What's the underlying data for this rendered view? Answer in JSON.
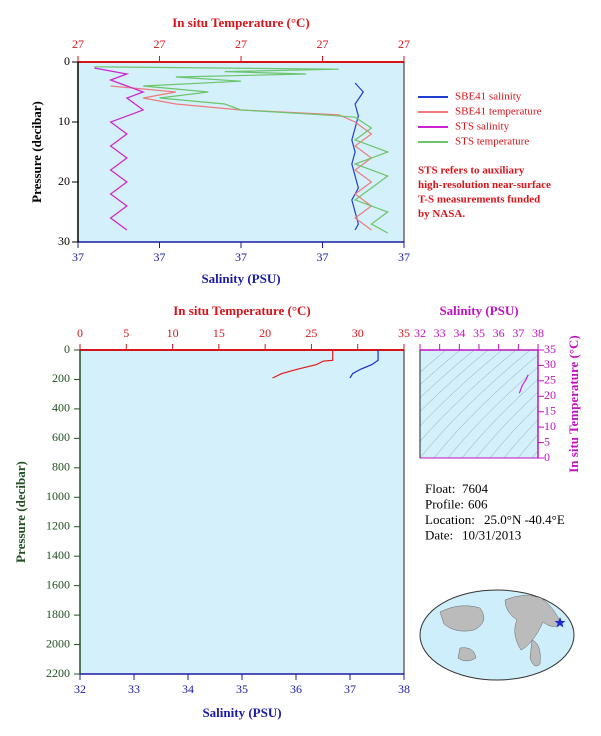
{
  "chart_data": [
    {
      "type": "line",
      "xlabel": "Salinity (PSU)",
      "x2label": "In situ Temperature (°C)",
      "ylabel": "Pressure (decibar)",
      "xlim": [
        36.9,
        37.1
      ],
      "xticks": [
        {
          "value": 36.9,
          "label": "37"
        },
        {
          "value": 36.95,
          "label": "37"
        },
        {
          "value": 37.0,
          "label": "37"
        },
        {
          "value": 37.05,
          "label": "37"
        },
        {
          "value": 37.1,
          "label": "37"
        }
      ],
      "x2lim": [
        26.9,
        27.1
      ],
      "x2ticks": [
        {
          "value": 26.9,
          "label": "27"
        },
        {
          "value": 26.95,
          "label": "27"
        },
        {
          "value": 27.0,
          "label": "27"
        },
        {
          "value": 27.05,
          "label": "27"
        },
        {
          "value": 27.1,
          "label": "27"
        }
      ],
      "ylim": [
        0,
        30
      ],
      "yticks": [
        0,
        10,
        20,
        30
      ],
      "y_inverted": true,
      "legend": "right",
      "series": [
        {
          "name": "SBE41 salinity",
          "color": "#1f3fd0",
          "axis": "x",
          "x": [
            37.07,
            37.075,
            37.07,
            37.072,
            37.07,
            37.068,
            37.07,
            37.068,
            37.07,
            37.072,
            37.068,
            37.07,
            37.072,
            37.07
          ],
          "y": [
            3.5,
            5,
            7,
            9,
            11,
            13,
            15,
            17,
            19,
            21,
            23,
            25,
            27,
            28
          ]
        },
        {
          "name": "SBE41 temperature",
          "color": "#f07a7a",
          "axis": "x2",
          "x": [
            26.92,
            26.96,
            26.94,
            26.96,
            27.0,
            27.06,
            27.07,
            27.08,
            27.07,
            27.08,
            27.07,
            27.08,
            27.07,
            27.08,
            27.07,
            27.08
          ],
          "y": [
            4,
            5,
            6,
            7,
            8,
            8.8,
            10,
            12,
            14,
            16,
            18,
            20,
            22,
            24,
            26,
            28
          ]
        },
        {
          "name": "STS salinity",
          "color": "#d020d0",
          "axis": "x",
          "x": [
            36.91,
            36.93,
            36.92,
            36.93,
            36.94,
            36.93,
            36.94,
            36.92,
            36.93,
            36.92,
            36.93,
            36.92,
            36.93,
            36.92,
            36.93,
            36.92,
            36.93
          ],
          "y": [
            1,
            2,
            3,
            4,
            5,
            6,
            8,
            10,
            12,
            14,
            16,
            18,
            20,
            22,
            24,
            26,
            28
          ]
        },
        {
          "name": "STS temperature",
          "color": "#6cc46c",
          "axis": "x2",
          "x": [
            26.91,
            27.06,
            26.99,
            27.04,
            26.96,
            27.0,
            26.94,
            26.98,
            26.95,
            26.99,
            27.0,
            27.05,
            27.07,
            27.08,
            27.07,
            27.09,
            27.07,
            27.09,
            27.08,
            27.07,
            27.09,
            27.08,
            27.09
          ],
          "y": [
            0.8,
            1.2,
            1.6,
            2.0,
            2.5,
            3.2,
            4,
            5,
            6,
            7,
            8,
            8.8,
            9.2,
            11,
            13,
            15,
            17,
            19,
            21,
            23,
            25,
            27,
            28.5
          ]
        }
      ],
      "annotation": [
        "STS refers to auxiliary",
        "high-resolution near-surface",
        "T-S measurements funded",
        "by NASA."
      ]
    },
    {
      "type": "line",
      "xlabel": "Salinity (PSU)",
      "x2label": "In situ Temperature (°C)",
      "ylabel": "Pressure (decibar)",
      "xlim": [
        32,
        38
      ],
      "xticks": [
        32,
        33,
        34,
        35,
        36,
        37,
        38
      ],
      "x2lim": [
        0,
        35
      ],
      "x2ticks": [
        0,
        5,
        10,
        15,
        20,
        25,
        30,
        35
      ],
      "ylim": [
        0,
        2200
      ],
      "yticks": [
        0,
        200,
        400,
        600,
        800,
        1000,
        1200,
        1400,
        1600,
        1800,
        2000,
        2200
      ],
      "y_inverted": true,
      "series": [
        {
          "color": "#e01a1a",
          "axis": "x2",
          "x": [
            27.3,
            27.3,
            26.3,
            25.5,
            23.5,
            21.8,
            20.8
          ],
          "y": [
            0,
            70,
            75,
            100,
            130,
            160,
            190
          ]
        },
        {
          "color": "#1a2ad0",
          "axis": "x",
          "x": [
            37.52,
            37.52,
            37.4,
            37.2,
            37.05,
            37.0
          ],
          "y": [
            0,
            70,
            100,
            130,
            160,
            190
          ]
        }
      ]
    },
    {
      "type": "line",
      "xlabel": "Salinity (PSU)",
      "ylabel": "In situ Temperature (°C)",
      "xlim": [
        32,
        38
      ],
      "xticks": [
        32,
        33,
        34,
        35,
        36,
        37,
        38
      ],
      "ylim": [
        0,
        35
      ],
      "yticks": [
        0,
        5,
        10,
        15,
        20,
        25,
        30,
        35
      ],
      "y_inverted": false,
      "series": [
        {
          "color": "#d020d0",
          "axis": "x",
          "x": [
            37.05,
            37.2,
            37.4,
            37.5
          ],
          "y": [
            21,
            23.5,
            25.5,
            27
          ]
        }
      ]
    }
  ],
  "info": [
    {
      "label": "Float:",
      "value": "7604"
    },
    {
      "label": "Profile:",
      "value": "606"
    },
    {
      "label": "Location:",
      "value": "25.0°N  -40.4°E"
    },
    {
      "label": "Date:",
      "value": "10/31/2013"
    }
  ]
}
